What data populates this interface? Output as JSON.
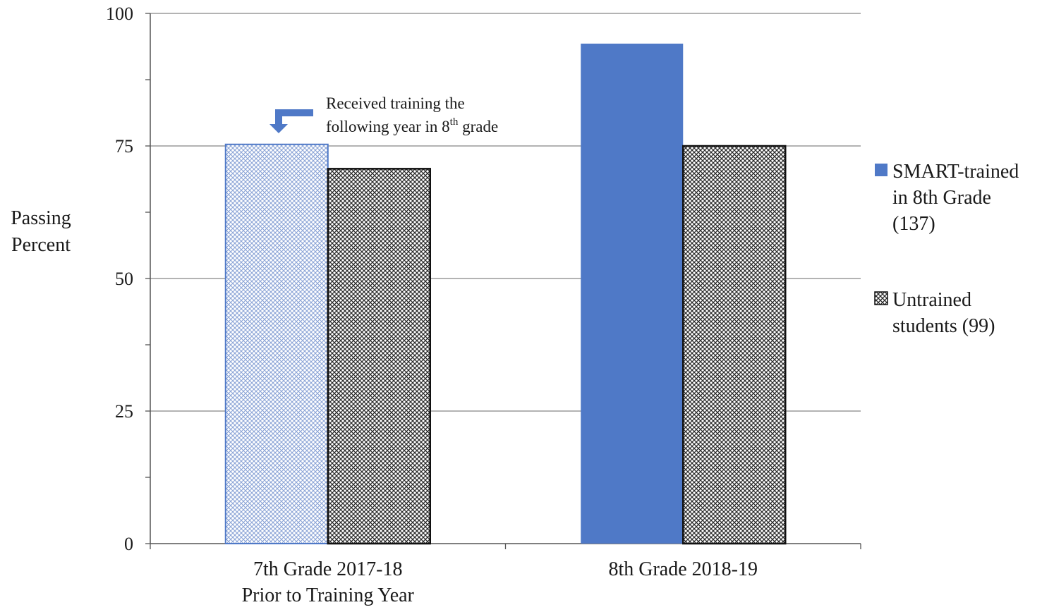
{
  "chart_data": {
    "type": "bar",
    "ylabel": [
      "Passing",
      "Percent"
    ],
    "ylim": [
      0,
      100
    ],
    "yticks": [
      0,
      25,
      50,
      75,
      100
    ],
    "grid": true,
    "legend_position": "right",
    "categories": [
      [
        "7th Grade 2017-18",
        "Prior to Training Year"
      ],
      [
        "8th Grade 2018-19"
      ]
    ],
    "series": [
      {
        "name": [
          "SMART-trained",
          "in 8th Grade",
          "(137)"
        ],
        "values": [
          75.3,
          94.3
        ],
        "color": "#4f79c7",
        "pattern_first": "light-crosshatch"
      },
      {
        "name": [
          "Untrained",
          "students (99)"
        ],
        "values": [
          70.7,
          75.0
        ],
        "color": "#1a1a1a",
        "pattern": "dark-crosshatch"
      }
    ],
    "annotation": {
      "line1": "Received training the",
      "line2_prefix": "following year in 8",
      "line2_sup": "th",
      "line2_suffix": " grade"
    }
  }
}
